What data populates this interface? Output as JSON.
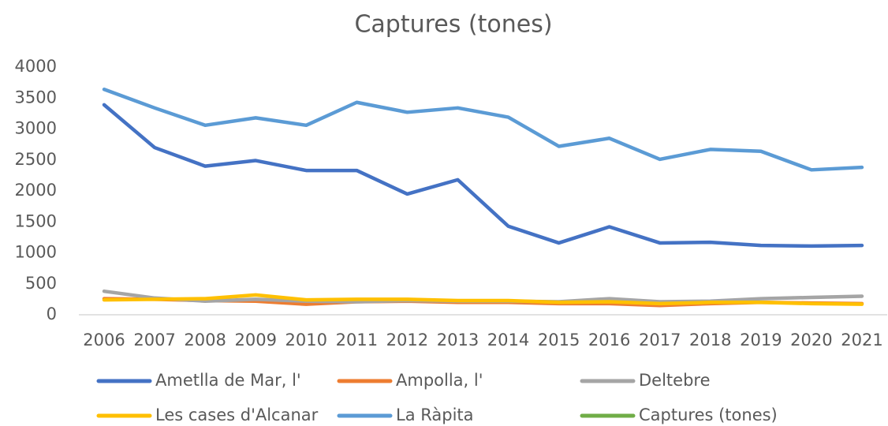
{
  "chart_data": {
    "type": "line",
    "title": "Captures (tones)",
    "categories": [
      "2006",
      "2007",
      "2008",
      "2009",
      "2010",
      "2011",
      "2012",
      "2013",
      "2014",
      "2015",
      "2016",
      "2017",
      "2018",
      "2019",
      "2020",
      "2021"
    ],
    "series": [
      {
        "name": "Ametlla de Mar, l'",
        "color": "#4472c4",
        "values": [
          3390,
          2700,
          2400,
          2490,
          2330,
          2330,
          1950,
          2180,
          1430,
          1160,
          1420,
          1160,
          1170,
          1120,
          1110,
          1120
        ]
      },
      {
        "name": "Ampolla, l'",
        "color": "#ed7d31",
        "values": [
          260,
          250,
          230,
          220,
          170,
          210,
          220,
          200,
          200,
          180,
          180,
          150,
          180,
          200,
          190,
          180
        ]
      },
      {
        "name": "Deltebre",
        "color": "#a5a5a5",
        "values": [
          380,
          270,
          220,
          250,
          220,
          210,
          230,
          220,
          220,
          210,
          260,
          210,
          220,
          260,
          280,
          300
        ]
      },
      {
        "name": "Les cases d'Alcanar",
        "color": "#ffc000",
        "values": [
          240,
          250,
          260,
          320,
          240,
          250,
          250,
          230,
          230,
          200,
          210,
          180,
          200,
          200,
          180,
          170
        ]
      },
      {
        "name": "La Ràpita",
        "color": "#5b9bd5",
        "values": [
          3640,
          3340,
          3060,
          3180,
          3060,
          3430,
          3270,
          3340,
          3190,
          2720,
          2850,
          2510,
          2670,
          2640,
          2340,
          2380
        ]
      },
      {
        "name": "Captures (tones)",
        "color": "#70ad47",
        "values": [
          null,
          null,
          null,
          null,
          null,
          null,
          null,
          null,
          null,
          null,
          null,
          null,
          null,
          null,
          null,
          null
        ]
      }
    ],
    "ylim": [
      0,
      4000
    ],
    "yticks": [
      0,
      500,
      1000,
      1500,
      2000,
      2500,
      3000,
      3500,
      4000
    ],
    "grid": false
  }
}
